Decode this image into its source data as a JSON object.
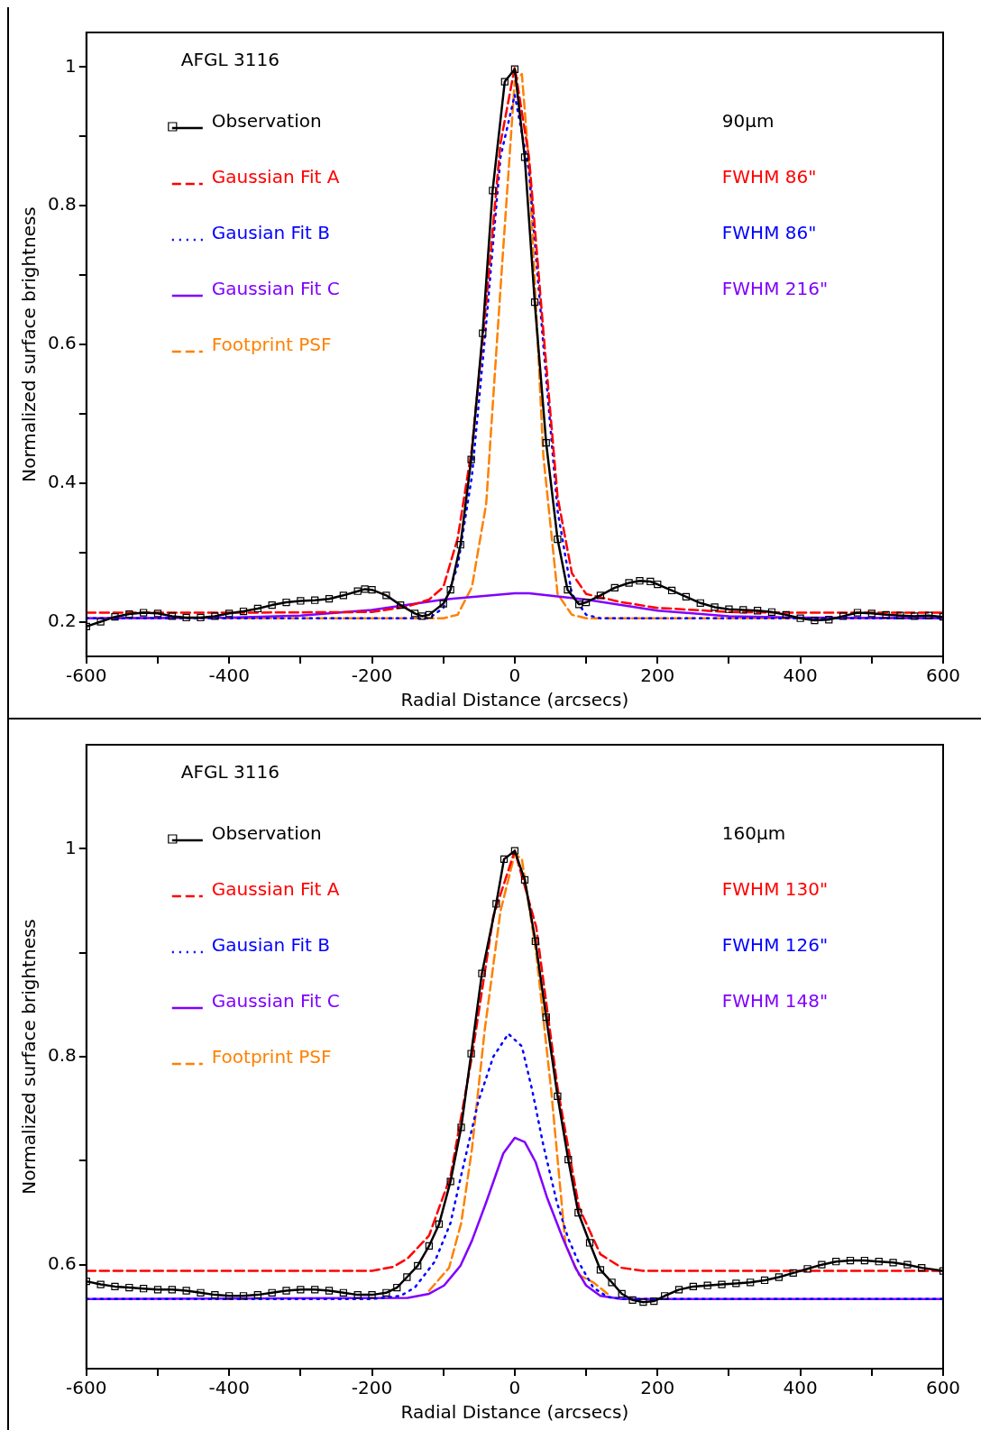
{
  "chart_data": [
    {
      "type": "line",
      "xlabel": "Radial Distance (arcsecs)",
      "ylabel": "Normalized surface brightness",
      "xlim": [
        -600,
        600
      ],
      "ylim": [
        0.15,
        1.05
      ],
      "xticks": [
        -600,
        {
          "value": -500,
          "label": null
        },
        -400,
        {
          "value": -300,
          "label": null
        },
        -200,
        {
          "value": -100,
          "label": null
        },
        0,
        {
          "value": 100,
          "label": null
        },
        200,
        {
          "value": 300,
          "label": null
        },
        400,
        {
          "value": 500,
          "label": null
        },
        600
      ],
      "yticks": [
        0.2,
        {
          "value": 0.3,
          "label": null
        },
        0.4,
        {
          "value": 0.5,
          "label": null
        },
        0.6,
        {
          "value": 0.7,
          "label": null
        },
        0.8,
        {
          "value": 0.9,
          "label": null
        },
        1
      ],
      "grid": false,
      "legend": "top left",
      "annotations": [
        "AFGL 3116",
        "90μm",
        "FWHM 86\"",
        "FWHM 86\"",
        "FWHM 216\""
      ],
      "series": [
        {
          "name": "Observation",
          "color": "#000000",
          "marker": "square",
          "line_style": "solid",
          "x": [
            -600,
            -580,
            -560,
            -540,
            -520,
            -500,
            -480,
            -460,
            -440,
            -420,
            -400,
            -380,
            -360,
            -340,
            -320,
            -300,
            -280,
            -260,
            -240,
            -220,
            -210,
            -200,
            -180,
            -160,
            -140,
            -130,
            -120,
            -100,
            -90,
            -76,
            -61,
            -45,
            -31,
            -14,
            0,
            14,
            28,
            44,
            60,
            74,
            90,
            100,
            120,
            140,
            160,
            175,
            190,
            200,
            220,
            240,
            260,
            280,
            300,
            320,
            340,
            360,
            380,
            400,
            420,
            440,
            460,
            480,
            500,
            520,
            540,
            560,
            580,
            600
          ],
          "values": [
            0.193,
            0.2,
            0.207,
            0.211,
            0.213,
            0.212,
            0.208,
            0.206,
            0.206,
            0.208,
            0.212,
            0.215,
            0.219,
            0.224,
            0.228,
            0.23,
            0.231,
            0.233,
            0.238,
            0.244,
            0.247,
            0.246,
            0.238,
            0.224,
            0.212,
            0.208,
            0.21,
            0.226,
            0.246,
            0.311,
            0.434,
            0.616,
            0.822,
            0.979,
            0.997,
            0.87,
            0.661,
            0.458,
            0.319,
            0.246,
            0.225,
            0.228,
            0.238,
            0.249,
            0.256,
            0.259,
            0.258,
            0.254,
            0.245,
            0.236,
            0.227,
            0.221,
            0.218,
            0.217,
            0.216,
            0.214,
            0.21,
            0.205,
            0.202,
            0.203,
            0.208,
            0.213,
            0.212,
            0.21,
            0.209,
            0.208,
            0.209,
            0.207
          ]
        },
        {
          "name": "Gaussian Fit A",
          "color": "#ff0000",
          "marker": "none",
          "line_style": "dashed",
          "x": [
            -600,
            -400,
            -200,
            -150,
            -120,
            -100,
            -80,
            -60,
            -40,
            -20,
            0,
            20,
            40,
            60,
            80,
            100,
            150,
            200,
            300,
            400,
            600
          ],
          "values": [
            0.213,
            0.213,
            0.214,
            0.222,
            0.232,
            0.25,
            0.32,
            0.45,
            0.66,
            0.89,
            1.0,
            0.87,
            0.62,
            0.38,
            0.27,
            0.24,
            0.228,
            0.22,
            0.214,
            0.213,
            0.213
          ]
        },
        {
          "name": "Gausian Fit B",
          "color": "#0000ff",
          "marker": "none",
          "line_style": "dotted",
          "x": [
            -600,
            -120,
            -100,
            -80,
            -60,
            -40,
            -20,
            0,
            20,
            40,
            60,
            80,
            100,
            120,
            600
          ],
          "values": [
            0.205,
            0.205,
            0.22,
            0.28,
            0.41,
            0.63,
            0.87,
            0.96,
            0.85,
            0.6,
            0.36,
            0.24,
            0.21,
            0.205,
            0.205
          ]
        },
        {
          "name": "Gaussian Fit C",
          "color": "#8000ff",
          "marker": "none",
          "line_style": "solid",
          "x": [
            -600,
            -400,
            -300,
            -200,
            -100,
            0,
            20,
            100,
            200,
            300,
            400,
            600
          ],
          "values": [
            0.205,
            0.206,
            0.209,
            0.217,
            0.232,
            0.241,
            0.241,
            0.232,
            0.216,
            0.208,
            0.206,
            0.205
          ]
        },
        {
          "name": "Footprint PSF",
          "color": "#ff8000",
          "marker": "none",
          "line_style": "dashed",
          "x": [
            -600,
            -100,
            -80,
            -60,
            -40,
            -20,
            0,
            10,
            20,
            40,
            60,
            80,
            100,
            600
          ],
          "values": [
            0.205,
            0.205,
            0.21,
            0.25,
            0.37,
            0.68,
            0.98,
            0.99,
            0.86,
            0.44,
            0.24,
            0.21,
            0.205,
            0.205
          ]
        }
      ]
    },
    {
      "type": "line",
      "xlabel": "Radial Distance (arcsecs)",
      "ylabel": "Normalized surface brightness",
      "xlim": [
        -600,
        600
      ],
      "ylim": [
        0.5,
        1.1
      ],
      "xticks": [
        -600,
        {
          "value": -500,
          "label": null
        },
        -400,
        {
          "value": -300,
          "label": null
        },
        -200,
        {
          "value": -100,
          "label": null
        },
        0,
        {
          "value": 100,
          "label": null
        },
        200,
        {
          "value": 300,
          "label": null
        },
        400,
        {
          "value": 500,
          "label": null
        },
        600
      ],
      "yticks": [
        0.6,
        {
          "value": 0.7,
          "label": null
        },
        0.8,
        {
          "value": 0.9,
          "label": null
        },
        1
      ],
      "grid": false,
      "legend": "top left",
      "annotations": [
        "AFGL 3116",
        "160μm",
        "FWHM 130\"",
        "FWHM 126\"",
        "FWHM 148\""
      ],
      "series": [
        {
          "name": "Observation",
          "color": "#000000",
          "marker": "square",
          "line_style": "solid",
          "x": [
            -600,
            -580,
            -560,
            -540,
            -520,
            -500,
            -480,
            -460,
            -440,
            -420,
            -400,
            -380,
            -360,
            -340,
            -320,
            -300,
            -280,
            -260,
            -240,
            -220,
            -200,
            -180,
            -165,
            -151,
            -136,
            -120,
            -106,
            -90,
            -75,
            -61,
            -46,
            -26,
            -15,
            0,
            14,
            29,
            44,
            60,
            75,
            89,
            105,
            120,
            136,
            150,
            165,
            180,
            195,
            210,
            230,
            250,
            270,
            290,
            310,
            330,
            350,
            370,
            390,
            410,
            430,
            450,
            470,
            490,
            510,
            530,
            550,
            570,
            600
          ],
          "values": [
            0.584,
            0.581,
            0.579,
            0.578,
            0.577,
            0.576,
            0.576,
            0.575,
            0.573,
            0.571,
            0.57,
            0.57,
            0.571,
            0.573,
            0.575,
            0.576,
            0.576,
            0.575,
            0.573,
            0.571,
            0.571,
            0.573,
            0.578,
            0.588,
            0.599,
            0.618,
            0.639,
            0.68,
            0.732,
            0.803,
            0.88,
            0.947,
            0.99,
            0.998,
            0.97,
            0.911,
            0.838,
            0.762,
            0.701,
            0.65,
            0.621,
            0.595,
            0.583,
            0.572,
            0.566,
            0.564,
            0.565,
            0.57,
            0.576,
            0.579,
            0.58,
            0.581,
            0.582,
            0.583,
            0.585,
            0.588,
            0.592,
            0.596,
            0.6,
            0.603,
            0.604,
            0.604,
            0.603,
            0.602,
            0.6,
            0.597,
            0.594
          ]
        },
        {
          "name": "Gaussian Fit A",
          "color": "#ff0000",
          "marker": "none",
          "line_style": "dashed",
          "x": [
            -600,
            -200,
            -170,
            -150,
            -120,
            -90,
            -60,
            -30,
            0,
            30,
            60,
            90,
            120,
            150,
            180,
            600
          ],
          "values": [
            0.594,
            0.594,
            0.598,
            0.606,
            0.628,
            0.685,
            0.8,
            0.935,
            0.998,
            0.925,
            0.77,
            0.655,
            0.61,
            0.597,
            0.594,
            0.594
          ]
        },
        {
          "name": "Gausian Fit B",
          "color": "#0000ff",
          "marker": "none",
          "line_style": "dotted",
          "x": [
            -600,
            -200,
            -160,
            -140,
            -112,
            -90,
            -76,
            -51,
            -30,
            -9,
            10,
            25,
            40,
            59,
            75,
            89,
            110,
            130,
            150,
            600
          ],
          "values": [
            0.567,
            0.567,
            0.57,
            0.578,
            0.603,
            0.64,
            0.683,
            0.757,
            0.8,
            0.822,
            0.81,
            0.766,
            0.715,
            0.66,
            0.625,
            0.603,
            0.578,
            0.569,
            0.567,
            0.567
          ]
        },
        {
          "name": "Gaussian Fit C",
          "color": "#8000ff",
          "marker": "none",
          "line_style": "solid",
          "x": [
            -600,
            -150,
            -120,
            -99,
            -76,
            -60,
            -40,
            -16,
            0,
            14,
            29,
            45,
            67,
            85,
            100,
            120,
            150,
            600
          ],
          "values": [
            0.567,
            0.568,
            0.572,
            0.58,
            0.599,
            0.623,
            0.66,
            0.707,
            0.722,
            0.718,
            0.699,
            0.665,
            0.626,
            0.597,
            0.58,
            0.57,
            0.567,
            0.567
          ]
        },
        {
          "name": "Footprint PSF",
          "color": "#ff8000",
          "marker": "none",
          "line_style": "dashed",
          "x": [
            -120,
            -92,
            -75,
            -60,
            -42,
            -20,
            0,
            10,
            30,
            51,
            71,
            90,
            110,
            130
          ],
          "values": [
            0.575,
            0.597,
            0.64,
            0.711,
            0.826,
            0.94,
            0.995,
            0.99,
            0.9,
            0.768,
            0.62,
            0.59,
            0.583,
            0.572
          ]
        }
      ]
    }
  ]
}
